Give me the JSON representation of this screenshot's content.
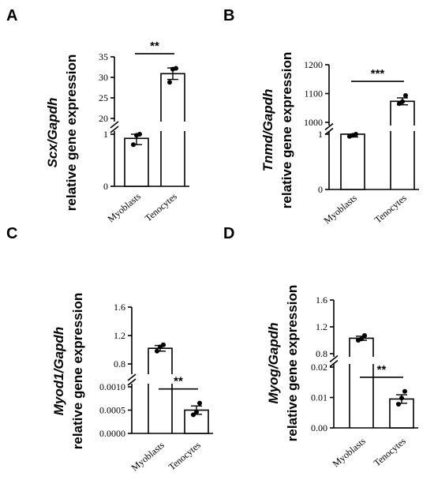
{
  "chart_data": [
    {
      "type": "bar",
      "panel": "A",
      "ylabel_gene": "Scx/Gapdh",
      "ylabel_text": "relative gene expression",
      "categories": [
        "Myoblasts",
        "Tenocytes"
      ],
      "values": [
        0.92,
        30.9
      ],
      "sem": [
        0.12,
        1.4
      ],
      "points": [
        [
          0.8,
          0.98,
          1.08
        ],
        [
          28.8,
          32.0,
          32.2
        ]
      ],
      "significance": "**",
      "ylim": [
        0,
        35
      ],
      "axis_break": [
        1.5,
        20
      ],
      "lower_ticks": [
        {
          "v": 0,
          "t": "0"
        },
        {
          "v": 1,
          "t": "1"
        }
      ],
      "upper_ticks": [
        {
          "v": 20,
          "t": "20"
        },
        {
          "v": 25,
          "t": "25"
        },
        {
          "v": 30,
          "t": "30"
        },
        {
          "v": 35,
          "t": "35"
        }
      ]
    },
    {
      "type": "bar",
      "panel": "B",
      "ylabel_gene": "Tnmd/Gapdh",
      "ylabel_text": "relative gene expression",
      "categories": [
        "Myoblasts",
        "Tenocytes"
      ],
      "values": [
        1.02,
        1073
      ],
      "sem": [
        0.07,
        12
      ],
      "points": [
        [
          0.96,
          0.98,
          1.12
        ],
        [
          1065,
          1072,
          1093
        ]
      ],
      "significance": "***",
      "ylim": [
        0,
        1200
      ],
      "axis_break": [
        1.5,
        1000
      ],
      "lower_ticks": [
        {
          "v": 0,
          "t": "0"
        },
        {
          "v": 1,
          "t": "1"
        }
      ],
      "upper_ticks": [
        {
          "v": 1000,
          "t": "1000"
        },
        {
          "v": 1100,
          "t": "1100"
        },
        {
          "v": 1200,
          "t": "1200"
        }
      ]
    },
    {
      "type": "bar",
      "panel": "C",
      "ylabel_gene": "Myod1/Gapdh",
      "ylabel_text": "relative gene expression",
      "categories": [
        "Myoblasts",
        "Tenocytes"
      ],
      "values": [
        1.02,
        0.0005
      ],
      "sem": [
        0.04,
        9e-05
      ],
      "points": [
        [
          0.98,
          1.04,
          1.07
        ],
        [
          0.0004,
          0.00046,
          0.00065
        ]
      ],
      "significance": "**",
      "ylim": [
        0,
        1.6
      ],
      "axis_break": [
        0.001,
        0.7
      ],
      "lower_ticks": [
        {
          "v": 0,
          "t": "0.0000"
        },
        {
          "v": 0.0005,
          "t": "0.0005"
        },
        {
          "v": 0.001,
          "t": "0.0010"
        }
      ],
      "upper_ticks": [
        {
          "v": 0.8,
          "t": "0.8"
        },
        {
          "v": 1.2,
          "t": "1.2"
        },
        {
          "v": 1.6,
          "t": "1.6"
        }
      ]
    },
    {
      "type": "bar",
      "panel": "D",
      "ylabel_gene": "Myog/Gapdh",
      "ylabel_text": "relative gene expression",
      "categories": [
        "Myoblasts",
        "Tenocytes"
      ],
      "values": [
        1.03,
        0.0095
      ],
      "sem": [
        0.03,
        0.0014
      ],
      "points": [
        [
          1.0,
          1.02,
          1.07
        ],
        [
          0.0078,
          0.0098,
          0.012
        ]
      ],
      "significance": "**",
      "ylim": [
        0,
        1.6
      ],
      "axis_break": [
        0.02,
        0.8
      ],
      "lower_ticks": [
        {
          "v": 0,
          "t": "0.00"
        },
        {
          "v": 0.01,
          "t": "0.01"
        },
        {
          "v": 0.02,
          "t": "0.02"
        }
      ],
      "upper_ticks": [
        {
          "v": 0.8,
          "t": "0.8"
        },
        {
          "v": 1.2,
          "t": "1.2"
        },
        {
          "v": 1.6,
          "t": "1.6"
        }
      ]
    }
  ]
}
